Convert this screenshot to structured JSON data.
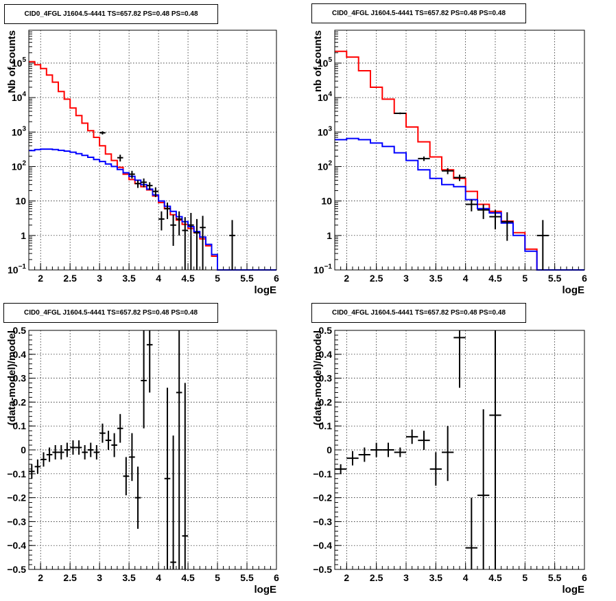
{
  "chart_data": [
    {
      "type": "line",
      "title": "CID0_4FGL J1604.5-4441 TS=657.82 PS=0.48 PS=0.48",
      "xlabel": "logE",
      "ylabel": "Nb of counts",
      "yscale": "log",
      "xlim": [
        1.8,
        6
      ],
      "ylim": [
        0.1,
        900000
      ],
      "grid": true,
      "xticks": [
        "2",
        "2.5",
        "3",
        "3.5",
        "4",
        "4.5",
        "5",
        "5.5",
        "6"
      ],
      "yticks": [
        {
          "v": 0.1,
          "label": "10",
          "sup": "−1"
        },
        {
          "v": 1,
          "label": "1",
          "sup": ""
        },
        {
          "v": 10,
          "label": "10",
          "sup": ""
        },
        {
          "v": 100,
          "label": "10",
          "sup": "2"
        },
        {
          "v": 1000,
          "label": "10",
          "sup": "3"
        },
        {
          "v": 10000,
          "label": "10",
          "sup": "4"
        },
        {
          "v": 100000,
          "label": "10",
          "sup": "5"
        }
      ],
      "bin_edges": [
        1.8,
        1.9,
        2.0,
        2.1,
        2.2,
        2.3,
        2.4,
        2.5,
        2.6,
        2.7,
        2.8,
        2.9,
        3.0,
        3.1,
        3.2,
        3.3,
        3.4,
        3.5,
        3.6,
        3.7,
        3.8,
        3.9,
        4.0,
        4.1,
        4.2,
        4.3,
        4.4,
        4.5,
        4.6,
        4.7,
        4.8,
        4.9,
        5.0,
        5.1,
        5.2,
        5.3,
        5.4,
        5.5,
        5.6,
        5.7,
        5.8,
        5.9,
        6.0
      ],
      "series": [
        {
          "color": "#ff0000",
          "values": [
            110000,
            90000,
            70000,
            45000,
            28000,
            15000,
            9000,
            5000,
            3000,
            1800,
            1100,
            700,
            400,
            230,
            150,
            95,
            60,
            42,
            32,
            26,
            21,
            14,
            9,
            6,
            4,
            2.8,
            2.1,
            1.6,
            1.2,
            0.8,
            0.5,
            0.25,
            0.1,
            0.1,
            0.1,
            0.1,
            0.1,
            0.1,
            0.1,
            0.1,
            0.1,
            0.1
          ]
        },
        {
          "color": "#0000ff",
          "values": [
            290,
            310,
            320,
            320,
            310,
            295,
            280,
            260,
            235,
            210,
            185,
            160,
            140,
            118,
            100,
            82,
            66,
            52,
            40,
            30,
            22,
            15,
            10,
            7,
            5,
            3.5,
            2.5,
            1.8,
            1.3,
            0.9,
            0.55,
            0.28,
            0.1,
            0.1,
            0.1,
            0.1,
            0.1,
            0.1,
            0.1,
            0.1,
            0.1,
            0.1
          ]
        }
      ],
      "points": [
        {
          "x": 3.05,
          "y": 950,
          "xerr": 0.05,
          "yerr": [
            100,
            100
          ]
        },
        {
          "x": 3.35,
          "y": 180,
          "xerr": 0.05,
          "yerr": [
            40,
            40
          ]
        },
        {
          "x": 3.55,
          "y": 60,
          "xerr": 0.05,
          "yerr": [
            15,
            15
          ]
        },
        {
          "x": 3.65,
          "y": 32,
          "xerr": 0.05,
          "yerr": [
            8,
            8
          ]
        },
        {
          "x": 3.75,
          "y": 35,
          "xerr": 0.05,
          "yerr": [
            10,
            10
          ]
        },
        {
          "x": 3.85,
          "y": 28,
          "xerr": 0.05,
          "yerr": [
            7,
            7
          ]
        },
        {
          "x": 3.95,
          "y": 19,
          "xerr": 0.05,
          "yerr": [
            6,
            6
          ]
        },
        {
          "x": 4.05,
          "y": 3,
          "xerr": 0.05,
          "yerr": [
            1.6,
            2.0
          ]
        },
        {
          "x": 4.15,
          "y": 6,
          "xerr": 0.05,
          "yerr": [
            3,
            3
          ]
        },
        {
          "x": 4.25,
          "y": 2,
          "xerr": 0.05,
          "yerr": [
            1.5,
            2.0
          ]
        },
        {
          "x": 4.35,
          "y": 3,
          "xerr": 0.05,
          "yerr": [
            2,
            2
          ]
        },
        {
          "x": 4.45,
          "y": 1.4,
          "xerr": 0.05,
          "yerr": [
            1.3,
            2.0
          ]
        },
        {
          "x": 4.55,
          "y": 2,
          "xerr": 0.05,
          "yerr": [
            1.9,
            2.5
          ]
        },
        {
          "x": 4.65,
          "y": 1.2,
          "xerr": 0.05,
          "yerr": [
            1.1,
            1.8
          ]
        },
        {
          "x": 4.75,
          "y": 1.7,
          "xerr": 0.05,
          "yerr": [
            1.6,
            2.0
          ]
        },
        {
          "x": 5.25,
          "y": 1,
          "xerr": 0.05,
          "yerr": [
            0.95,
            1.8
          ]
        }
      ]
    },
    {
      "type": "line",
      "title": "CID0_4FGL J1604.5-4441 TS=657.82 PS=0.48 PS=0.48",
      "xlabel": "logE",
      "ylabel": "nb of counts",
      "yscale": "log",
      "xlim": [
        1.8,
        6
      ],
      "ylim": [
        0.1,
        900000
      ],
      "grid": true,
      "xticks": [
        "2",
        "2.5",
        "3",
        "3.5",
        "4",
        "4.5",
        "5",
        "5.5",
        "6"
      ],
      "yticks": [
        {
          "v": 0.1,
          "label": "10",
          "sup": "−1"
        },
        {
          "v": 1,
          "label": "1",
          "sup": ""
        },
        {
          "v": 10,
          "label": "10",
          "sup": ""
        },
        {
          "v": 100,
          "label": "10",
          "sup": "2"
        },
        {
          "v": 1000,
          "label": "10",
          "sup": "3"
        },
        {
          "v": 10000,
          "label": "10",
          "sup": "4"
        },
        {
          "v": 100000,
          "label": "10",
          "sup": "5"
        }
      ],
      "bin_edges": [
        1.8,
        2.0,
        2.2,
        2.4,
        2.6,
        2.8,
        3.0,
        3.2,
        3.4,
        3.6,
        3.8,
        4.0,
        4.2,
        4.4,
        4.6,
        4.8,
        5.0,
        5.2,
        5.4,
        5.6,
        5.8,
        6.0
      ],
      "series": [
        {
          "color": "#ff0000",
          "values": [
            220000,
            150000,
            60000,
            20000,
            9000,
            3500,
            1400,
            520,
            190,
            80,
            45,
            19,
            8,
            5,
            2.6,
            1.2,
            0.4,
            0.1,
            0.1,
            0.1,
            0.1
          ]
        },
        {
          "color": "#0000ff",
          "values": [
            600,
            650,
            600,
            480,
            380,
            250,
            150,
            80,
            45,
            30,
            26,
            11,
            6,
            4.5,
            2.3,
            1.0,
            0.35,
            0.1,
            0.1,
            0.1,
            0.1
          ]
        }
      ],
      "points": [
        {
          "x": 2.9,
          "y": 3500,
          "xerr": 0.1,
          "yerr": [
            200,
            200
          ]
        },
        {
          "x": 3.3,
          "y": 170,
          "xerr": 0.1,
          "yerr": [
            25,
            25
          ]
        },
        {
          "x": 3.7,
          "y": 75,
          "xerr": 0.1,
          "yerr": [
            15,
            15
          ]
        },
        {
          "x": 3.9,
          "y": 48,
          "xerr": 0.1,
          "yerr": [
            10,
            10
          ]
        },
        {
          "x": 4.1,
          "y": 8,
          "xerr": 0.1,
          "yerr": [
            3,
            3
          ]
        },
        {
          "x": 4.3,
          "y": 5.5,
          "xerr": 0.1,
          "yerr": [
            2.5,
            2.5
          ]
        },
        {
          "x": 4.5,
          "y": 3.5,
          "xerr": 0.1,
          "yerr": [
            2,
            2
          ]
        },
        {
          "x": 4.7,
          "y": 2.5,
          "xerr": 0.1,
          "yerr": [
            1.8,
            2.2
          ]
        },
        {
          "x": 5.3,
          "y": 1,
          "xerr": 0.1,
          "yerr": [
            0.95,
            1.8
          ]
        }
      ]
    },
    {
      "type": "scatter",
      "title": "CID0_4FGL J1604.5-4441 TS=657.82 PS=0.48 PS=0.48",
      "xlabel": "logE",
      "ylabel": "(data-model)/model",
      "yscale": "linear",
      "xlim": [
        1.8,
        6
      ],
      "ylim": [
        -0.5,
        0.5
      ],
      "grid": true,
      "xticks": [
        "2",
        "2.5",
        "3",
        "3.5",
        "4",
        "4.5",
        "5",
        "5.5",
        "6"
      ],
      "yticks": [
        {
          "v": -0.5,
          "label": "−0.5",
          "sup": ""
        },
        {
          "v": -0.4,
          "label": "−0.4",
          "sup": ""
        },
        {
          "v": -0.3,
          "label": "−0.3",
          "sup": ""
        },
        {
          "v": -0.2,
          "label": "−0.2",
          "sup": ""
        },
        {
          "v": -0.1,
          "label": "−0.1",
          "sup": ""
        },
        {
          "v": 0,
          "label": "0",
          "sup": ""
        },
        {
          "v": 0.1,
          "label": "0.1",
          "sup": ""
        },
        {
          "v": 0.2,
          "label": "0.2",
          "sup": ""
        },
        {
          "v": 0.3,
          "label": "0.3",
          "sup": ""
        },
        {
          "v": 0.4,
          "label": "0.4",
          "sup": ""
        },
        {
          "v": 0.5,
          "label": "0.5",
          "sup": ""
        }
      ],
      "points": [
        {
          "x": 1.85,
          "y": -0.09,
          "xerr": 0.05,
          "yerr": [
            0.03,
            0.03
          ]
        },
        {
          "x": 1.95,
          "y": -0.07,
          "xerr": 0.05,
          "yerr": [
            0.03,
            0.03
          ]
        },
        {
          "x": 2.05,
          "y": -0.04,
          "xerr": 0.05,
          "yerr": [
            0.03,
            0.03
          ]
        },
        {
          "x": 2.15,
          "y": -0.02,
          "xerr": 0.05,
          "yerr": [
            0.03,
            0.03
          ]
        },
        {
          "x": 2.25,
          "y": -0.01,
          "xerr": 0.05,
          "yerr": [
            0.03,
            0.03
          ]
        },
        {
          "x": 2.35,
          "y": -0.01,
          "xerr": 0.05,
          "yerr": [
            0.03,
            0.03
          ]
        },
        {
          "x": 2.45,
          "y": 0.0,
          "xerr": 0.05,
          "yerr": [
            0.03,
            0.03
          ]
        },
        {
          "x": 2.55,
          "y": 0.01,
          "xerr": 0.05,
          "yerr": [
            0.03,
            0.03
          ]
        },
        {
          "x": 2.65,
          "y": 0.01,
          "xerr": 0.05,
          "yerr": [
            0.03,
            0.03
          ]
        },
        {
          "x": 2.75,
          "y": -0.01,
          "xerr": 0.05,
          "yerr": [
            0.03,
            0.03
          ]
        },
        {
          "x": 2.85,
          "y": 0.0,
          "xerr": 0.05,
          "yerr": [
            0.03,
            0.03
          ]
        },
        {
          "x": 2.95,
          "y": -0.01,
          "xerr": 0.05,
          "yerr": [
            0.03,
            0.03
          ]
        },
        {
          "x": 3.05,
          "y": 0.07,
          "xerr": 0.05,
          "yerr": [
            0.04,
            0.04
          ]
        },
        {
          "x": 3.15,
          "y": 0.04,
          "xerr": 0.05,
          "yerr": [
            0.04,
            0.04
          ]
        },
        {
          "x": 3.25,
          "y": 0.02,
          "xerr": 0.05,
          "yerr": [
            0.05,
            0.05
          ]
        },
        {
          "x": 3.35,
          "y": 0.09,
          "xerr": 0.05,
          "yerr": [
            0.06,
            0.06
          ]
        },
        {
          "x": 3.45,
          "y": -0.11,
          "xerr": 0.05,
          "yerr": [
            0.08,
            0.08
          ]
        },
        {
          "x": 3.55,
          "y": -0.03,
          "xerr": 0.05,
          "yerr": [
            0.1,
            0.1
          ]
        },
        {
          "x": 3.65,
          "y": -0.2,
          "xerr": 0.05,
          "yerr": [
            0.13,
            0.13
          ]
        },
        {
          "x": 3.75,
          "y": 0.29,
          "xerr": 0.05,
          "yerr": [
            0.2,
            0.21
          ]
        },
        {
          "x": 3.85,
          "y": 0.44,
          "xerr": 0.05,
          "yerr": [
            0.2,
            0.06
          ]
        },
        {
          "x": 4.15,
          "y": -0.12,
          "xerr": 0.05,
          "yerr": [
            0.38,
            0.38
          ]
        },
        {
          "x": 4.25,
          "y": -0.47,
          "xerr": 0.05,
          "yerr": [
            0.03,
            0.53
          ]
        },
        {
          "x": 4.35,
          "y": 0.24,
          "xerr": 0.05,
          "yerr": [
            0.74,
            0.26
          ]
        },
        {
          "x": 4.45,
          "y": -0.36,
          "xerr": 0.05,
          "yerr": [
            0.14,
            0.64
          ]
        }
      ]
    },
    {
      "type": "scatter",
      "title": "CID0_4FGL J1604.5-4441 TS=657.82 PS=0.48 PS=0.48",
      "xlabel": "logE",
      "ylabel": "(data-model)/model",
      "yscale": "linear",
      "xlim": [
        1.8,
        6
      ],
      "ylim": [
        -0.5,
        0.5
      ],
      "grid": true,
      "xticks": [
        "2",
        "2.5",
        "3",
        "3.5",
        "4",
        "4.5",
        "5",
        "5.5",
        "6"
      ],
      "yticks": [
        {
          "v": -0.5,
          "label": "−0.5",
          "sup": ""
        },
        {
          "v": -0.4,
          "label": "−0.4",
          "sup": ""
        },
        {
          "v": -0.3,
          "label": "−0.3",
          "sup": ""
        },
        {
          "v": -0.2,
          "label": "−0.2",
          "sup": ""
        },
        {
          "v": -0.1,
          "label": "−0.1",
          "sup": ""
        },
        {
          "v": 0,
          "label": "0",
          "sup": ""
        },
        {
          "v": 0.1,
          "label": "0.1",
          "sup": ""
        },
        {
          "v": 0.2,
          "label": "0.2",
          "sup": ""
        },
        {
          "v": 0.3,
          "label": "0.3",
          "sup": ""
        },
        {
          "v": 0.4,
          "label": "0.4",
          "sup": ""
        },
        {
          "v": 0.5,
          "label": "0.5",
          "sup": ""
        }
      ],
      "points": [
        {
          "x": 1.9,
          "y": -0.08,
          "xerr": 0.1,
          "yerr": [
            0.02,
            0.02
          ]
        },
        {
          "x": 2.1,
          "y": -0.035,
          "xerr": 0.1,
          "yerr": [
            0.03,
            0.03
          ]
        },
        {
          "x": 2.3,
          "y": -0.02,
          "xerr": 0.1,
          "yerr": [
            0.03,
            0.03
          ]
        },
        {
          "x": 2.5,
          "y": 0.0,
          "xerr": 0.1,
          "yerr": [
            0.03,
            0.03
          ]
        },
        {
          "x": 2.7,
          "y": 0.0,
          "xerr": 0.1,
          "yerr": [
            0.03,
            0.03
          ]
        },
        {
          "x": 2.9,
          "y": -0.01,
          "xerr": 0.1,
          "yerr": [
            0.02,
            0.02
          ]
        },
        {
          "x": 3.1,
          "y": 0.055,
          "xerr": 0.1,
          "yerr": [
            0.03,
            0.03
          ]
        },
        {
          "x": 3.3,
          "y": 0.04,
          "xerr": 0.1,
          "yerr": [
            0.04,
            0.04
          ]
        },
        {
          "x": 3.5,
          "y": -0.08,
          "xerr": 0.1,
          "yerr": [
            0.07,
            0.07
          ]
        },
        {
          "x": 3.7,
          "y": -0.01,
          "xerr": 0.1,
          "yerr": [
            0.12,
            0.11
          ]
        },
        {
          "x": 3.9,
          "y": 0.47,
          "xerr": 0.1,
          "yerr": [
            0.21,
            0.03
          ]
        },
        {
          "x": 4.1,
          "y": -0.41,
          "xerr": 0.1,
          "yerr": [
            0.09,
            0.21
          ]
        },
        {
          "x": 4.3,
          "y": -0.19,
          "xerr": 0.1,
          "yerr": [
            0.31,
            0.36
          ]
        },
        {
          "x": 4.5,
          "y": 0.145,
          "xerr": 0.1,
          "yerr": [
            0.645,
            0.355
          ]
        }
      ]
    }
  ]
}
